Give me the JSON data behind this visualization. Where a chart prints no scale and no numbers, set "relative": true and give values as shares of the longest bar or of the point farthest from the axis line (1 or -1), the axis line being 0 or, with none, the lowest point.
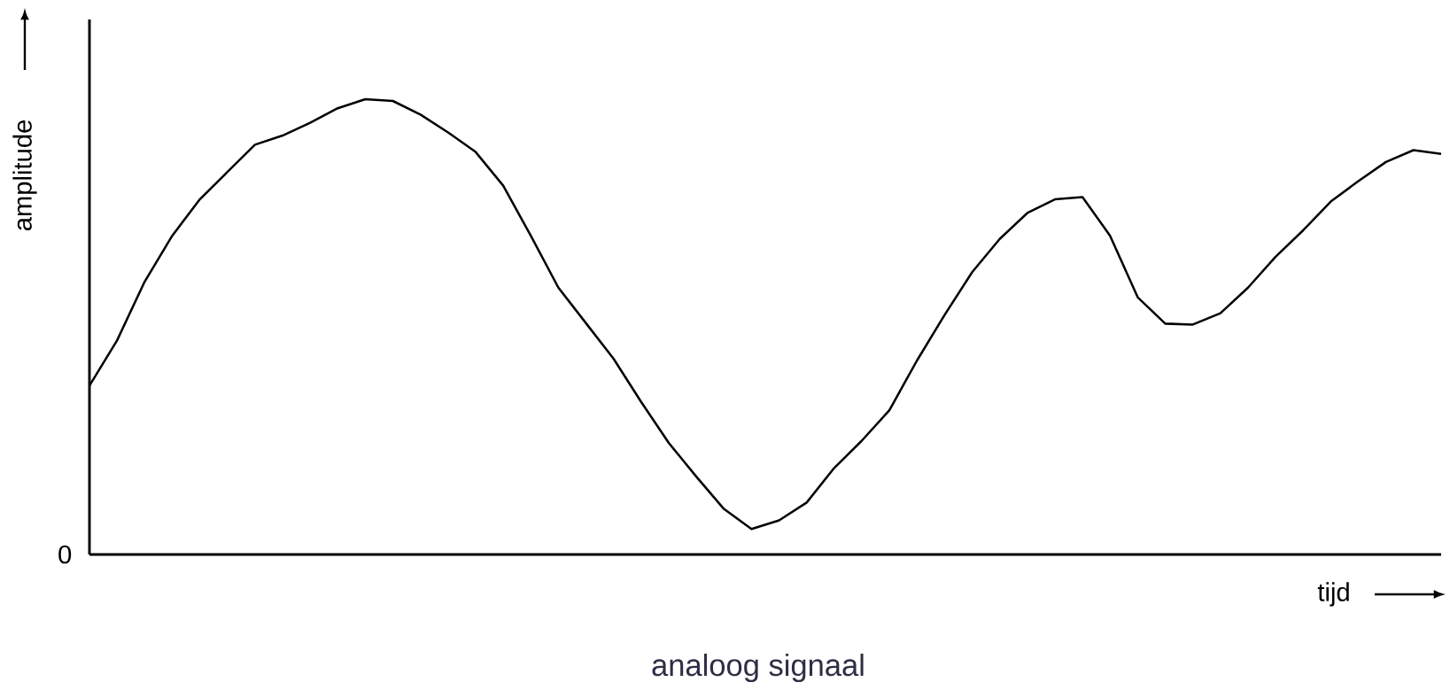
{
  "chart_data": {
    "type": "line",
    "title": "analoog signaal",
    "xlabel": "tijd",
    "ylabel": "amplitude",
    "relative": true,
    "annotations": [
      "0"
    ],
    "color": "#000000",
    "categories": [
      null,
      null,
      null,
      null,
      null,
      null,
      null,
      null,
      null,
      null,
      null,
      null,
      null,
      null,
      null,
      null,
      null,
      null,
      null,
      null,
      null,
      null,
      null,
      null,
      null,
      null,
      null,
      null,
      null,
      null,
      null,
      null,
      null,
      null,
      null,
      null,
      null,
      null,
      null,
      null,
      null,
      null,
      null,
      null,
      null,
      null,
      null,
      null,
      null,
      null
    ],
    "values": [
      0.371,
      0.47,
      0.599,
      0.7,
      0.78,
      0.84,
      0.9,
      0.92,
      0.948,
      0.98,
      1,
      0.996,
      0.966,
      0.927,
      0.884,
      0.81,
      0.7,
      0.586,
      0.508,
      0.43,
      0.335,
      0.245,
      0.171,
      0.1,
      0.056,
      0.075,
      0.114,
      0.19,
      0.25,
      0.317,
      0.426,
      0.526,
      0.62,
      0.693,
      0.75,
      0.78,
      0.785,
      0.7,
      0.565,
      0.507,
      0.505,
      0.53,
      0.586,
      0.654,
      0.712,
      0.775,
      0.82,
      0.862,
      0.888,
      0.88
    ]
  }
}
